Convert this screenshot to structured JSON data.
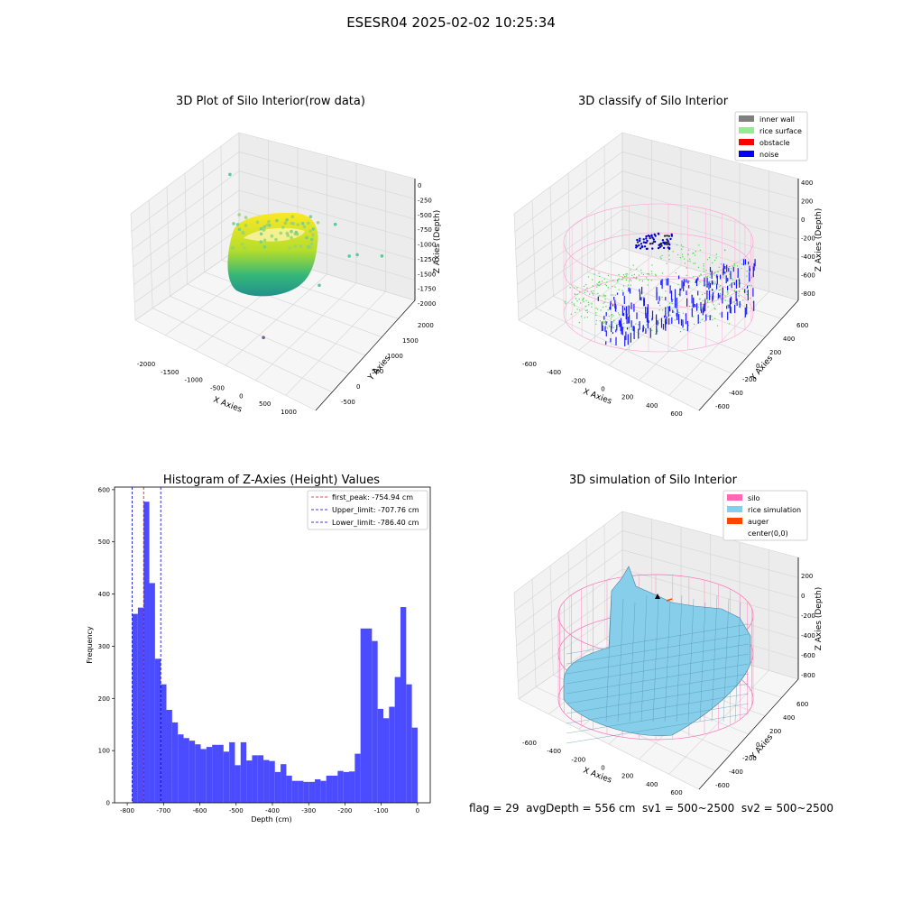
{
  "figure": {
    "title": "ESESR04 2025-02-02 10:25:34",
    "footer": "flag = 29  avgDepth = 556 cm  sv1 = 500~2500  sv2 = 500~2500"
  },
  "colors": {
    "hist_bar": "#4b4bff",
    "first_peak": "#ff0000",
    "limits": "#0000cc",
    "inner_wall": "#808080",
    "rice_surface": "#90ee90",
    "obstacle": "#ff0000",
    "noise": "#0000ff",
    "silo": "#ff69b4",
    "rice_simulation": "#87ceeb",
    "auger": "#ff4500"
  },
  "chart_data": [
    {
      "type": "scatter",
      "projection": "3d",
      "title": "3D Plot of Silo Interior(row data)",
      "xlabel": "X Axies",
      "ylabel": "Y Axies",
      "zlabel": "Z Axies (Depth)",
      "x_ticks": [
        "-2000",
        "-1500",
        "-1000",
        "-500",
        "0",
        "500",
        "1000"
      ],
      "y_ticks": [
        "-500",
        "0",
        "500",
        "1000",
        "1500",
        "2000"
      ],
      "z_ticks": [
        "0",
        "-250",
        "-500",
        "-750",
        "-1000",
        "-1250",
        "-1500",
        "-1750",
        "-2000"
      ],
      "xlim": [
        -2200,
        1200
      ],
      "ylim": [
        -700,
        2200
      ],
      "zlim": [
        -2100,
        100
      ],
      "colormap": "viridis",
      "outliers": [
        {
          "x": -1900,
          "y": 1600,
          "z": -900
        },
        {
          "x": 800,
          "y": 900,
          "z": -600
        },
        {
          "x": 500,
          "y": 1600,
          "z": -1200
        },
        {
          "x": 300,
          "y": 800,
          "z": -1300
        },
        {
          "x": 900,
          "y": 1700,
          "z": -1100
        },
        {
          "x": 150,
          "y": 1500,
          "z": -750
        },
        {
          "x": -300,
          "y": 100,
          "z": -2050
        }
      ]
    },
    {
      "type": "scatter",
      "projection": "3d",
      "title": "3D classify of Silo Interior",
      "xlabel": "X Axies",
      "ylabel": "Y Axies",
      "zlabel": "Z Axies (Depth)",
      "x_ticks": [
        "-600",
        "-400",
        "-200",
        "0",
        "200",
        "400",
        "600"
      ],
      "y_ticks": [
        "-600",
        "-400",
        "-200",
        "0",
        "200",
        "400",
        "600"
      ],
      "z_ticks": [
        "400",
        "200",
        "0",
        "-200",
        "-400",
        "-600",
        "-800"
      ],
      "xlim": [
        -700,
        700
      ],
      "ylim": [
        -700,
        700
      ],
      "zlim": [
        -950,
        450
      ],
      "legend": [
        "inner wall",
        "rice surface",
        "obstacle",
        "noise"
      ],
      "legend_position": "top-right"
    },
    {
      "type": "bar",
      "title": "Histogram of Z-Axies (Height) Values",
      "xlabel": "Depth (cm)",
      "ylabel": "Frequency",
      "xlim": [
        -835,
        35
      ],
      "ylim": [
        0,
        605
      ],
      "bin_start": -786.4,
      "bin_width": 15.73,
      "values": [
        362,
        374,
        577,
        421,
        276,
        227,
        178,
        154,
        131,
        124,
        119,
        112,
        103,
        107,
        111,
        111,
        98,
        116,
        72,
        116,
        81,
        91,
        91,
        82,
        80,
        59,
        74,
        52,
        42,
        42,
        40,
        40,
        45,
        42,
        52,
        52,
        61,
        59,
        60,
        94,
        334,
        334,
        310,
        180,
        162,
        184,
        241,
        375,
        227,
        144
      ],
      "x_ticks": [
        -800,
        -700,
        -600,
        -500,
        -400,
        -300,
        -200,
        -100,
        0
      ],
      "y_ticks": [
        0,
        100,
        200,
        300,
        400,
        500,
        600
      ],
      "vlines": [
        {
          "label": "first_peak: -754.94 cm",
          "x": -754.94,
          "color": "#ff0000"
        },
        {
          "label": "Upper_limit: -707.76 cm",
          "x": -707.76,
          "color": "#0000cc"
        },
        {
          "label": "Lower_limit: -786.40 cm",
          "x": -786.4,
          "color": "#0000cc"
        }
      ],
      "legend_position": "top-right"
    },
    {
      "type": "surface",
      "projection": "3d",
      "title": "3D simulation of Silo Interior",
      "xlabel": "X Axies",
      "ylabel": "Y Axies",
      "zlabel": "Z Axies (Depth)",
      "x_ticks": [
        "-600",
        "-400",
        "-200",
        "0",
        "200",
        "400",
        "600"
      ],
      "y_ticks": [
        "-600",
        "-400",
        "-200",
        "0",
        "200",
        "400",
        "600"
      ],
      "z_ticks": [
        "200",
        "0",
        "-200",
        "-400",
        "-600",
        "-800"
      ],
      "xlim": [
        -700,
        700
      ],
      "ylim": [
        -700,
        700
      ],
      "zlim": [
        -950,
        350
      ],
      "legend": [
        "silo",
        "rice simulation",
        "auger",
        "center(0,0)"
      ],
      "legend_position": "top-right"
    }
  ]
}
